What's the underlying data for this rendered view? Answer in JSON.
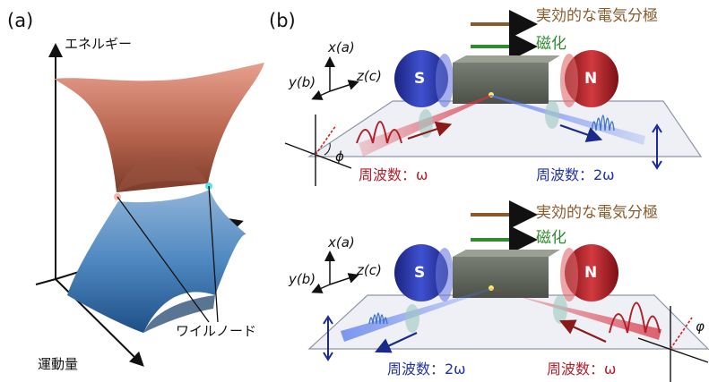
{
  "panel_a": {
    "label": "(a)",
    "energy_label": "エネルギー",
    "momentum_label": "運動量",
    "weyl_label": "ワイルノード"
  },
  "panel_b": {
    "label": "(b)",
    "legend": {
      "polarization": "実効的な電気分極",
      "magnetization": "磁化",
      "polarization_color": "#8b5a2b",
      "magnetization_color": "#2e8b2e"
    },
    "top": {
      "axis_x": "x(a)",
      "axis_y": "y(b)",
      "axis_z": "z(c)",
      "magnet_s": "S",
      "magnet_n": "N",
      "phi": "ϕ",
      "freq_in": "周波数：ω",
      "freq_out": "周波数：2ω"
    },
    "bottom": {
      "axis_x": "x(a)",
      "axis_y": "y(b)",
      "axis_z": "z(c)",
      "magnet_s": "S",
      "magnet_n": "N",
      "phi": "φ",
      "freq_out": "周波数：2ω",
      "freq_in": "周波数：ω"
    },
    "colors": {
      "red_beam": "#b2202a",
      "blue_beam": "#2233aa",
      "s_magnet": "#2a3bb0",
      "n_magnet": "#b8242a"
    }
  }
}
